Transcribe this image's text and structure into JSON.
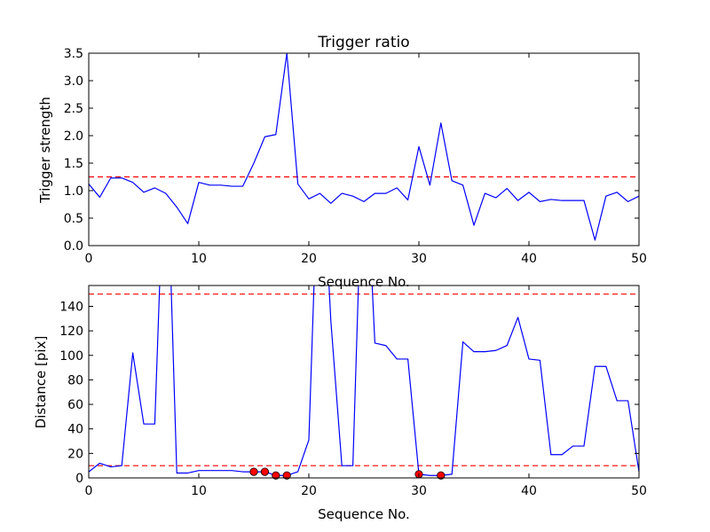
{
  "chart_data": [
    {
      "type": "line",
      "title": "Trigger ratio",
      "xlabel": "Sequence No.",
      "ylabel": "Trigger strength",
      "xlim": [
        0,
        50
      ],
      "ylim": [
        0,
        3.5
      ],
      "xticks": [
        0,
        10,
        20,
        30,
        40,
        50
      ],
      "yticks": [
        0.0,
        0.5,
        1.0,
        1.5,
        2.0,
        2.5,
        3.0,
        3.5
      ],
      "ytick_decimals": 1,
      "line_color": "#0000ff",
      "threshold_color": "#ff0000",
      "thresholds": [
        1.25
      ],
      "x": [
        0,
        1,
        2,
        3,
        4,
        5,
        6,
        7,
        8,
        9,
        10,
        11,
        12,
        13,
        14,
        15,
        16,
        17,
        18,
        19,
        20,
        21,
        22,
        23,
        24,
        25,
        26,
        27,
        28,
        29,
        30,
        31,
        32,
        33,
        34,
        35,
        36,
        37,
        38,
        39,
        40,
        41,
        42,
        43,
        44,
        45,
        46,
        47,
        48,
        49,
        50
      ],
      "y": [
        1.12,
        0.88,
        1.23,
        1.23,
        1.15,
        0.97,
        1.05,
        0.95,
        0.7,
        0.4,
        1.15,
        1.1,
        1.1,
        1.08,
        1.08,
        1.5,
        1.98,
        2.02,
        3.5,
        1.12,
        0.85,
        0.95,
        0.77,
        0.95,
        0.9,
        0.8,
        0.95,
        0.95,
        1.05,
        0.83,
        1.8,
        1.1,
        2.23,
        1.18,
        1.1,
        0.37,
        0.95,
        0.87,
        1.04,
        0.82,
        0.97,
        0.8,
        0.84,
        0.82,
        0.82,
        0.82,
        0.1,
        0.9,
        0.97,
        0.8,
        0.9
      ],
      "markers": {
        "x": [],
        "y": []
      }
    },
    {
      "type": "line",
      "title": "",
      "xlabel": "Sequence No.",
      "ylabel": "Distance [pix]",
      "xlim": [
        0,
        50
      ],
      "ylim": [
        0,
        157
      ],
      "xticks": [
        0,
        10,
        20,
        30,
        40,
        50
      ],
      "yticks": [
        0,
        20,
        40,
        60,
        80,
        100,
        120,
        140
      ],
      "ytick_decimals": 0,
      "line_color": "#0000ff",
      "threshold_color": "#ff0000",
      "thresholds": [
        10,
        150
      ],
      "x": [
        0,
        1,
        2,
        3,
        4,
        5,
        6,
        7,
        8,
        9,
        10,
        11,
        12,
        13,
        14,
        15,
        16,
        17,
        18,
        19,
        20,
        21,
        22,
        23,
        24,
        25,
        26,
        27,
        28,
        29,
        30,
        31,
        32,
        33,
        34,
        35,
        36,
        37,
        38,
        39,
        40,
        41,
        42,
        43,
        44,
        45,
        46,
        47,
        48,
        49,
        50
      ],
      "y": [
        5,
        12,
        9,
        10,
        102,
        44,
        44,
        300,
        4,
        4,
        6,
        6,
        6,
        6,
        5,
        5,
        5,
        2,
        2,
        5,
        31,
        300,
        128,
        10,
        10,
        300,
        110,
        108,
        97,
        97,
        3,
        2,
        2,
        3,
        111,
        103,
        103,
        104,
        108,
        131,
        97,
        96,
        19,
        19,
        26,
        26,
        91,
        91,
        63,
        63,
        5
      ],
      "markers": {
        "x": [
          15,
          16,
          17,
          18,
          30,
          32
        ],
        "y": [
          5,
          5,
          2,
          2,
          3,
          2
        ],
        "color": "#ff0000"
      }
    }
  ]
}
